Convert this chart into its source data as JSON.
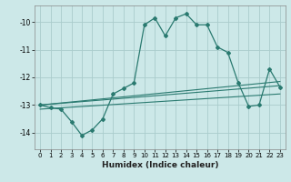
{
  "xlabel": "Humidex (Indice chaleur)",
  "ylabel": "",
  "background_color": "#cce8e8",
  "grid_color": "#aacccc",
  "line_color": "#2a7a70",
  "xlim": [
    -0.5,
    23.5
  ],
  "ylim": [
    -14.6,
    -9.4
  ],
  "yticks": [
    -14,
    -13,
    -12,
    -11,
    -10
  ],
  "xticks": [
    0,
    1,
    2,
    3,
    4,
    5,
    6,
    7,
    8,
    9,
    10,
    11,
    12,
    13,
    14,
    15,
    16,
    17,
    18,
    19,
    20,
    21,
    22,
    23
  ],
  "series": [
    {
      "x": [
        0,
        1,
        2,
        3,
        4,
        5,
        6,
        7,
        8,
        9,
        10,
        11,
        12,
        13,
        14,
        15,
        16,
        17,
        18,
        19,
        20,
        21,
        22,
        23
      ],
      "y": [
        -13.0,
        -13.1,
        -13.15,
        -13.6,
        -14.1,
        -13.9,
        -13.5,
        -12.6,
        -12.4,
        -12.2,
        -10.1,
        -9.85,
        -10.5,
        -9.85,
        -9.7,
        -10.1,
        -10.1,
        -10.9,
        -11.1,
        -12.2,
        -13.05,
        -13.0,
        -11.7,
        -12.35
      ],
      "with_markers": true
    },
    {
      "x": [
        0,
        23
      ],
      "y": [
        -13.0,
        -12.3
      ],
      "with_markers": false
    },
    {
      "x": [
        0,
        23
      ],
      "y": [
        -13.15,
        -12.6
      ],
      "with_markers": false
    },
    {
      "x": [
        0,
        23
      ],
      "y": [
        -13.0,
        -12.15
      ],
      "with_markers": false
    }
  ]
}
